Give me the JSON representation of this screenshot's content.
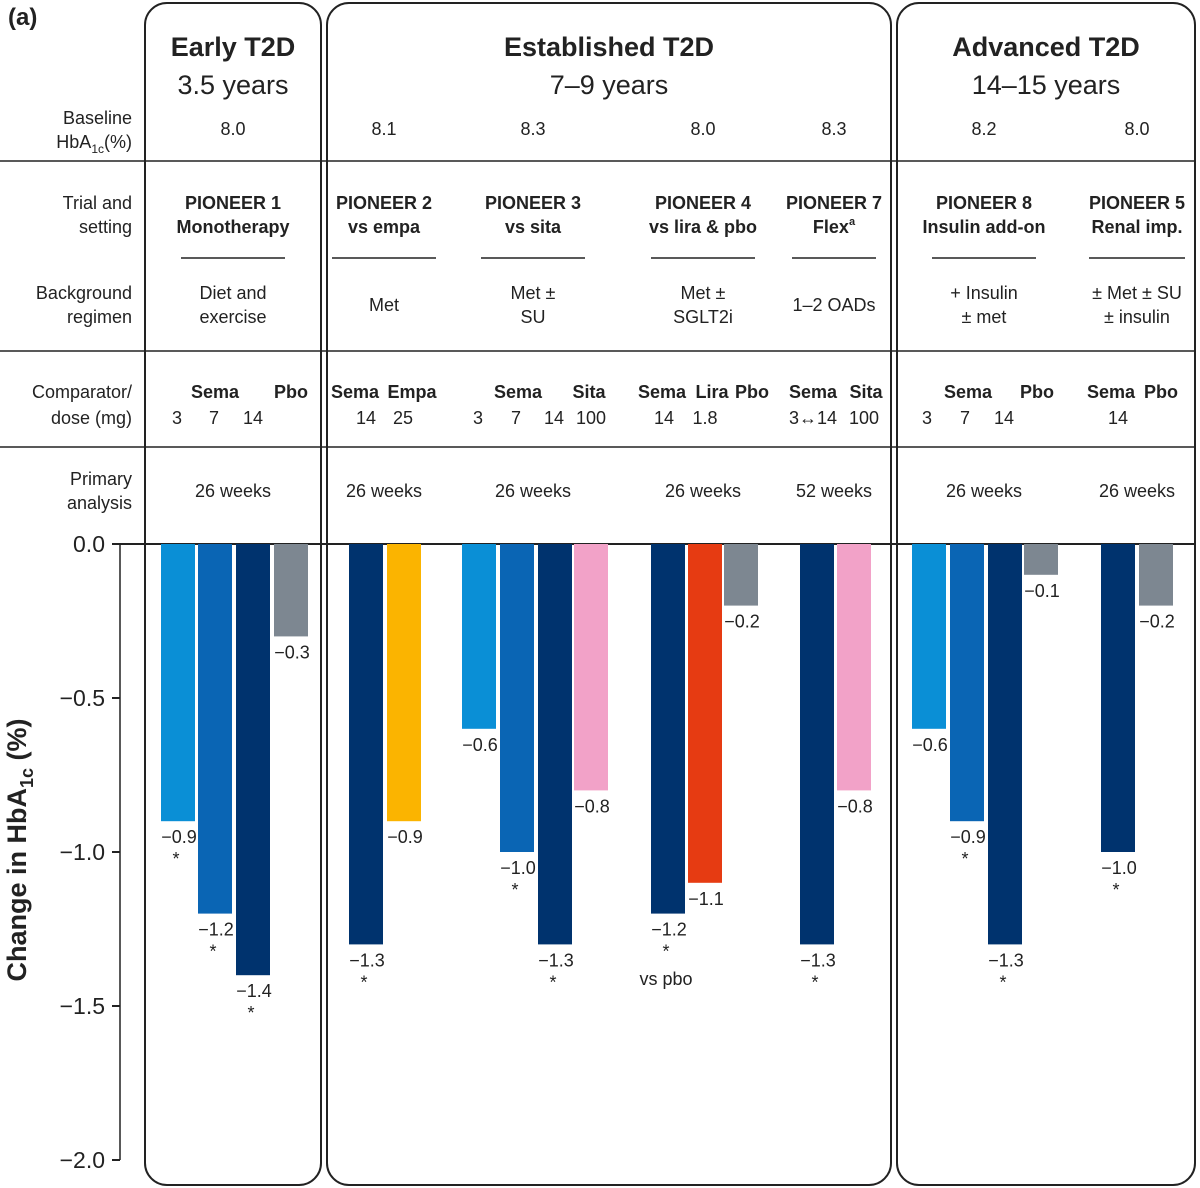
{
  "panel_label": "(a)",
  "row_labels": {
    "baseline": [
      "Baseline",
      "HbA",
      "1c",
      "(%)"
    ],
    "trial": [
      "Trial and",
      "setting"
    ],
    "background": [
      "Background",
      "regimen"
    ],
    "comparator": [
      "Comparator/",
      "dose (mg)"
    ],
    "primary": [
      "Primary",
      "analysis"
    ]
  },
  "groups": [
    {
      "title": "Early T2D",
      "duration": "3.5 years"
    },
    {
      "title": "Established T2D",
      "duration": "7–9 years"
    },
    {
      "title": "Advanced T2D",
      "duration": "14–15 years"
    }
  ],
  "trials": [
    {
      "baseline": "8.0",
      "name": "PIONEER 1",
      "setting": "Monotherapy",
      "setting_sup": "",
      "background": [
        "Diet and",
        "exercise"
      ],
      "comparators": [
        {
          "label": "Sema"
        },
        {
          "label": "Pbo"
        }
      ],
      "doses": [
        "3",
        "7",
        "14"
      ],
      "primary": "26 weeks"
    },
    {
      "baseline": "8.1",
      "name": "PIONEER 2",
      "setting": "vs empa",
      "setting_sup": "",
      "background": [
        "Met"
      ],
      "comparators": [
        {
          "label": "Sema"
        },
        {
          "label": "Empa"
        }
      ],
      "doses": [
        "14",
        "25"
      ],
      "primary": "26 weeks"
    },
    {
      "baseline": "8.3",
      "name": "PIONEER 3",
      "setting": "vs sita",
      "setting_sup": "",
      "background": [
        "Met ±",
        "SU"
      ],
      "comparators": [
        {
          "label": "Sema"
        },
        {
          "label": "Sita"
        }
      ],
      "doses": [
        "3",
        "7",
        "14",
        "100"
      ],
      "primary": "26 weeks"
    },
    {
      "baseline": "8.0",
      "name": "PIONEER 4",
      "setting": "vs lira & pbo",
      "setting_sup": "",
      "background": [
        "Met ±",
        "SGLT2i"
      ],
      "comparators": [
        {
          "label": "Sema"
        },
        {
          "label": "Lira"
        },
        {
          "label": "Pbo"
        }
      ],
      "doses": [
        "14",
        "1.8"
      ],
      "primary": "26 weeks"
    },
    {
      "baseline": "8.3",
      "name": "PIONEER 7",
      "setting": "Flex",
      "setting_sup": "a",
      "background": [
        "1–2 OADs"
      ],
      "comparators": [
        {
          "label": "Sema"
        },
        {
          "label": "Sita"
        }
      ],
      "doses": [
        "3↔14",
        "100"
      ],
      "primary": "52 weeks"
    },
    {
      "baseline": "8.2",
      "name": "PIONEER 8",
      "setting": "Insulin add-on",
      "setting_sup": "",
      "background": [
        "+ Insulin",
        "± met"
      ],
      "comparators": [
        {
          "label": "Sema"
        },
        {
          "label": "Pbo"
        }
      ],
      "doses": [
        "3",
        "7",
        "14"
      ],
      "primary": "26 weeks"
    },
    {
      "baseline": "8.0",
      "name": "PIONEER 5",
      "setting": "Renal imp.",
      "setting_sup": "",
      "background": [
        "± Met ± SU",
        "± insulin"
      ],
      "comparators": [
        {
          "label": "Sema"
        },
        {
          "label": "Pbo"
        }
      ],
      "doses": [
        "14"
      ],
      "primary": "26 weeks"
    }
  ],
  "colors": {
    "sema3": "#0a8fd6",
    "sema7": "#0a65b4",
    "sema14": "#00336e",
    "placebo": "#7d8791",
    "empagliflozin": "#fbb400",
    "sitagliptin": "#f2a2c8",
    "liraglutide": "#e63b12"
  },
  "chart_data": {
    "type": "bar",
    "ylabel_parts": [
      "Change in HbA",
      "1c",
      " (%)"
    ],
    "ylim": [
      -2.0,
      0.0
    ],
    "yticks": [
      "0.0",
      "−0.5",
      "−1.0",
      "−1.5",
      "−2.0"
    ],
    "ytick_values": [
      0.0,
      -0.5,
      -1.0,
      -1.5,
      -2.0
    ],
    "grid": false,
    "bars": [
      {
        "trial": "PIONEER 1",
        "value": -0.9,
        "label": "−0.9",
        "color": "sema3",
        "sig": "*"
      },
      {
        "trial": "PIONEER 1",
        "value": -1.2,
        "label": "−1.2",
        "color": "sema7",
        "sig": "*"
      },
      {
        "trial": "PIONEER 1",
        "value": -1.4,
        "label": "−1.4",
        "color": "sema14",
        "sig": "*"
      },
      {
        "trial": "PIONEER 1",
        "value": -0.3,
        "label": "−0.3",
        "color": "placebo",
        "sig": ""
      },
      {
        "trial": "PIONEER 2",
        "value": -1.3,
        "label": "−1.3",
        "color": "sema14",
        "sig": "*"
      },
      {
        "trial": "PIONEER 2",
        "value": -0.9,
        "label": "−0.9",
        "color": "empagliflozin",
        "sig": ""
      },
      {
        "trial": "PIONEER 3",
        "value": -0.6,
        "label": "−0.6",
        "color": "sema3",
        "sig": ""
      },
      {
        "trial": "PIONEER 3",
        "value": -1.0,
        "label": "−1.0",
        "color": "sema7",
        "sig": "*"
      },
      {
        "trial": "PIONEER 3",
        "value": -1.3,
        "label": "−1.3",
        "color": "sema14",
        "sig": "*"
      },
      {
        "trial": "PIONEER 3",
        "value": -0.8,
        "label": "−0.8",
        "color": "sitagliptin",
        "sig": ""
      },
      {
        "trial": "PIONEER 4",
        "value": -1.2,
        "label": "−1.2",
        "color": "sema14",
        "sig": "*"
      },
      {
        "trial": "PIONEER 4",
        "value": -1.1,
        "label": "−1.1",
        "color": "liraglutide",
        "sig": ""
      },
      {
        "trial": "PIONEER 4",
        "value": -0.2,
        "label": "−0.2",
        "color": "placebo",
        "sig": ""
      },
      {
        "trial": "PIONEER 7",
        "value": -1.3,
        "label": "−1.3",
        "color": "sema14",
        "sig": "*"
      },
      {
        "trial": "PIONEER 7",
        "value": -0.8,
        "label": "−0.8",
        "color": "sitagliptin",
        "sig": ""
      },
      {
        "trial": "PIONEER 8",
        "value": -0.6,
        "label": "−0.6",
        "color": "sema3",
        "sig": ""
      },
      {
        "trial": "PIONEER 8",
        "value": -0.9,
        "label": "−0.9",
        "color": "sema7",
        "sig": "*"
      },
      {
        "trial": "PIONEER 8",
        "value": -1.3,
        "label": "−1.3",
        "color": "sema14",
        "sig": "*"
      },
      {
        "trial": "PIONEER 8",
        "value": -0.1,
        "label": "−0.1",
        "color": "placebo",
        "sig": ""
      },
      {
        "trial": "PIONEER 5",
        "value": -1.0,
        "label": "−1.0",
        "color": "sema14",
        "sig": "*"
      },
      {
        "trial": "PIONEER 5",
        "value": -0.2,
        "label": "−0.2",
        "color": "placebo",
        "sig": ""
      }
    ],
    "annotations": [
      {
        "trial": "PIONEER 4",
        "text": "vs pbo"
      }
    ]
  }
}
